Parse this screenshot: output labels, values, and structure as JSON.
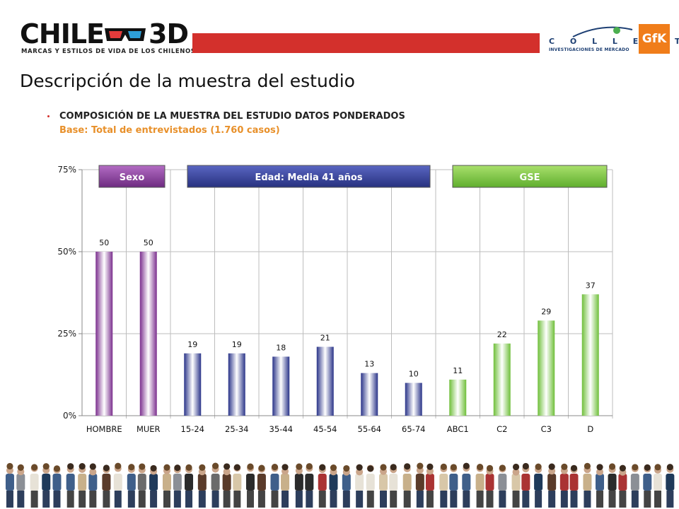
{
  "header": {
    "brand_main": "CHILE",
    "brand_3d": "3D",
    "brand_tagline": "MARCAS Y ESTILOS DE VIDA DE LOS CHILENOS",
    "partner_name": "C O L L E C T",
    "partner_tagline": "INVESTIGACIONES DE MERCADO",
    "partner_logo": "GfK",
    "accent_color": "#d3302c"
  },
  "page": {
    "title": "Descripción de la muestra del estudio",
    "section_title": "COMPOSICIÓN DE LA MUESTRA DEL ESTUDIO DATOS PONDERADOS",
    "section_base": "Base: Total de entrevistados (1.760 casos)"
  },
  "chart_data": {
    "type": "bar",
    "title": "",
    "xlabel": "",
    "ylabel": "",
    "categories": [
      "HOMBRE",
      "MUER",
      "15-24",
      "25-34",
      "35-44",
      "45-54",
      "55-64",
      "65-74",
      "ABC1",
      "C2",
      "C3",
      "D"
    ],
    "values": [
      50,
      50,
      19,
      19,
      18,
      21,
      13,
      10,
      11,
      22,
      29,
      37
    ],
    "value_labels": [
      "50",
      "50",
      "19",
      "19",
      "18",
      "21",
      "13",
      "10",
      "11",
      "22",
      "29",
      "37"
    ],
    "ylim": [
      0,
      75
    ],
    "yticks": [
      0,
      25,
      50,
      75
    ],
    "ytick_labels": [
      "0%",
      "25%",
      "50%",
      "75%"
    ],
    "grid": true,
    "groups": [
      {
        "label": "Sexo",
        "start": 0,
        "end": 1,
        "color": "#8a3f9c"
      },
      {
        "label": "Edad: Media 41 años",
        "start": 2,
        "end": 7,
        "color": "#2f3e96"
      },
      {
        "label": "GSE",
        "start": 8,
        "end": 11,
        "color": "#7cc242"
      }
    ]
  }
}
